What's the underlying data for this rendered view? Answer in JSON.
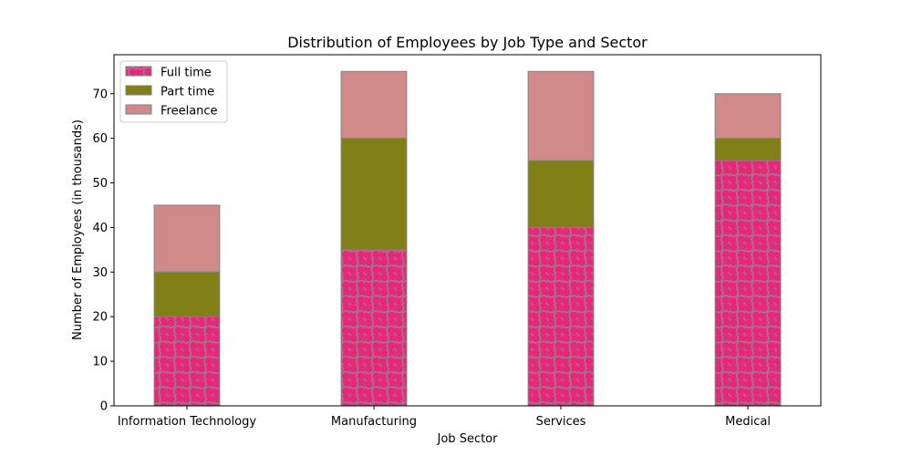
{
  "chart_data": {
    "type": "bar",
    "stacked": true,
    "title": "Distribution of Employees by Job Type and Sector",
    "xlabel": "Job Sector",
    "ylabel": "Number of Employees (in thousands)",
    "categories": [
      "Information Technology",
      "Manufacturing",
      "Services",
      "Medical"
    ],
    "series": [
      {
        "name": "Full time",
        "values": [
          20,
          35,
          40,
          55
        ],
        "color": "#e8267a",
        "hatch": "circles"
      },
      {
        "name": "Part time",
        "values": [
          10,
          25,
          15,
          5
        ],
        "color": "#808017"
      },
      {
        "name": "Freelance",
        "values": [
          15,
          15,
          20,
          10
        ],
        "color": "#cf8a89"
      }
    ],
    "ylim": [
      0,
      78.75
    ],
    "yticks": [
      0,
      10,
      20,
      30,
      40,
      50,
      60,
      70
    ],
    "grid": false,
    "legend_position": "top-left",
    "edge_color": "#808080"
  }
}
